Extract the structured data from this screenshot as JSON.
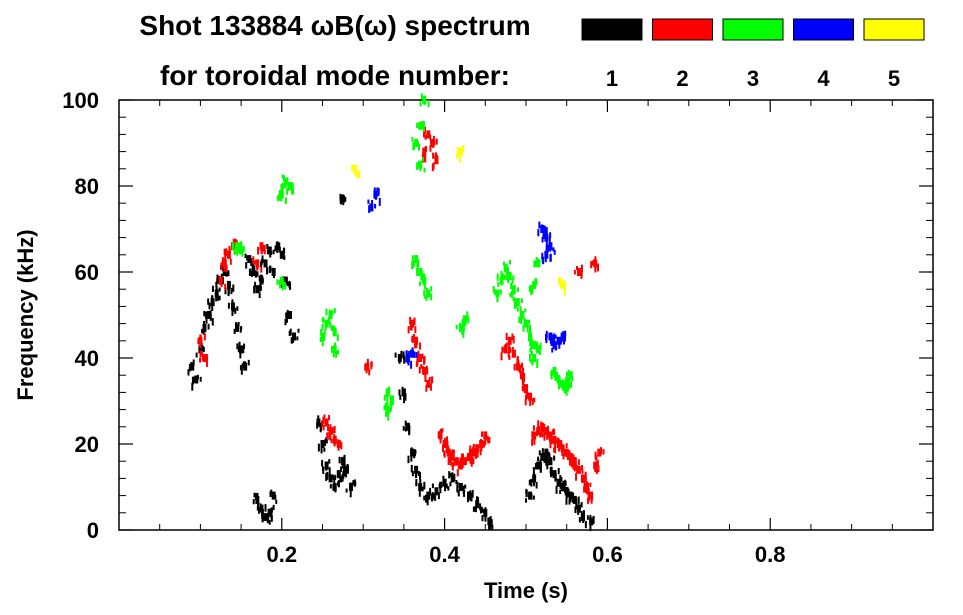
{
  "chart_data": {
    "type": "scatter",
    "title": "Shot 133884 ωB(ω) spectrum",
    "subtitle": "for toroidal mode number:",
    "xlabel": "Time (s)",
    "ylabel": "Frequency (kHz)",
    "xlim": [
      0.0,
      1.0
    ],
    "ylim": [
      0,
      100
    ],
    "x_ticks": [
      0.2,
      0.4,
      0.6,
      0.8
    ],
    "x_tick_labels": [
      "0.2",
      "0.4",
      "0.6",
      "0.8"
    ],
    "y_ticks": [
      0,
      20,
      40,
      60,
      80,
      100
    ],
    "y_tick_labels": [
      "0",
      "20",
      "40",
      "60",
      "80",
      "100"
    ],
    "legend_placement": "top-right",
    "grid": false,
    "series": [
      {
        "name": "1",
        "color": "#000000",
        "points": [
          [
            0.09,
            38
          ],
          [
            0.095,
            35
          ],
          [
            0.1,
            42
          ],
          [
            0.105,
            47
          ],
          [
            0.11,
            50
          ],
          [
            0.115,
            53
          ],
          [
            0.12,
            55
          ],
          [
            0.125,
            58
          ],
          [
            0.13,
            60
          ],
          [
            0.135,
            57
          ],
          [
            0.14,
            52
          ],
          [
            0.145,
            47
          ],
          [
            0.15,
            42
          ],
          [
            0.155,
            38
          ],
          [
            0.16,
            63
          ],
          [
            0.165,
            60
          ],
          [
            0.17,
            56
          ],
          [
            0.175,
            58
          ],
          [
            0.18,
            62
          ],
          [
            0.185,
            65
          ],
          [
            0.19,
            60
          ],
          [
            0.195,
            66
          ],
          [
            0.2,
            64
          ],
          [
            0.205,
            58
          ],
          [
            0.21,
            50
          ],
          [
            0.215,
            45
          ],
          [
            0.175,
            5
          ],
          [
            0.18,
            3
          ],
          [
            0.185,
            4
          ],
          [
            0.19,
            8
          ],
          [
            0.17,
            7
          ],
          [
            0.245,
            25
          ],
          [
            0.25,
            20
          ],
          [
            0.255,
            15
          ],
          [
            0.26,
            12
          ],
          [
            0.265,
            10
          ],
          [
            0.27,
            13
          ],
          [
            0.275,
            16
          ],
          [
            0.28,
            14
          ],
          [
            0.285,
            10
          ],
          [
            0.275,
            77
          ],
          [
            0.345,
            40
          ],
          [
            0.35,
            32
          ],
          [
            0.355,
            24
          ],
          [
            0.36,
            18
          ],
          [
            0.365,
            14
          ],
          [
            0.37,
            10
          ],
          [
            0.38,
            8
          ],
          [
            0.39,
            9
          ],
          [
            0.4,
            11
          ],
          [
            0.41,
            12
          ],
          [
            0.42,
            10
          ],
          [
            0.43,
            8
          ],
          [
            0.44,
            6
          ],
          [
            0.45,
            4
          ],
          [
            0.455,
            2
          ],
          [
            0.505,
            8
          ],
          [
            0.51,
            12
          ],
          [
            0.515,
            15
          ],
          [
            0.52,
            17
          ],
          [
            0.525,
            18
          ],
          [
            0.53,
            16
          ],
          [
            0.535,
            13
          ],
          [
            0.54,
            11
          ],
          [
            0.545,
            10
          ],
          [
            0.55,
            9
          ],
          [
            0.555,
            8
          ],
          [
            0.56,
            7
          ],
          [
            0.565,
            5
          ],
          [
            0.57,
            3
          ],
          [
            0.58,
            2
          ]
        ]
      },
      {
        "name": "2",
        "color": "#ff0000",
        "points": [
          [
            0.125,
            58
          ],
          [
            0.13,
            62
          ],
          [
            0.135,
            64
          ],
          [
            0.14,
            66
          ],
          [
            0.1,
            44
          ],
          [
            0.105,
            40
          ],
          [
            0.17,
            62
          ],
          [
            0.175,
            66
          ],
          [
            0.255,
            25
          ],
          [
            0.26,
            23
          ],
          [
            0.265,
            21
          ],
          [
            0.27,
            20
          ],
          [
            0.305,
            38
          ],
          [
            0.36,
            48
          ],
          [
            0.365,
            44
          ],
          [
            0.37,
            40
          ],
          [
            0.375,
            37
          ],
          [
            0.38,
            34
          ],
          [
            0.375,
            88
          ],
          [
            0.38,
            92
          ],
          [
            0.385,
            90
          ],
          [
            0.39,
            86
          ],
          [
            0.395,
            22
          ],
          [
            0.4,
            20
          ],
          [
            0.405,
            18
          ],
          [
            0.41,
            17
          ],
          [
            0.415,
            16
          ],
          [
            0.42,
            15
          ],
          [
            0.425,
            16
          ],
          [
            0.43,
            17
          ],
          [
            0.435,
            18
          ],
          [
            0.44,
            19
          ],
          [
            0.445,
            20
          ],
          [
            0.45,
            22
          ],
          [
            0.475,
            42
          ],
          [
            0.48,
            44
          ],
          [
            0.485,
            41
          ],
          [
            0.49,
            38
          ],
          [
            0.495,
            36
          ],
          [
            0.5,
            33
          ],
          [
            0.505,
            31
          ],
          [
            0.51,
            22
          ],
          [
            0.515,
            23
          ],
          [
            0.52,
            24
          ],
          [
            0.525,
            23
          ],
          [
            0.53,
            22
          ],
          [
            0.535,
            21
          ],
          [
            0.54,
            20
          ],
          [
            0.545,
            19
          ],
          [
            0.55,
            18
          ],
          [
            0.555,
            17
          ],
          [
            0.56,
            16
          ],
          [
            0.565,
            14
          ],
          [
            0.57,
            12
          ],
          [
            0.575,
            10
          ],
          [
            0.58,
            8
          ],
          [
            0.585,
            15
          ],
          [
            0.59,
            18
          ],
          [
            0.585,
            62
          ],
          [
            0.565,
            60
          ]
        ]
      },
      {
        "name": "3",
        "color": "#00ff00",
        "points": [
          [
            0.145,
            66
          ],
          [
            0.15,
            65
          ],
          [
            0.2,
            78
          ],
          [
            0.205,
            81
          ],
          [
            0.21,
            80
          ],
          [
            0.2,
            58
          ],
          [
            0.25,
            45
          ],
          [
            0.255,
            48
          ],
          [
            0.26,
            50
          ],
          [
            0.265,
            46
          ],
          [
            0.265,
            42
          ],
          [
            0.33,
            32
          ],
          [
            0.335,
            30
          ],
          [
            0.33,
            28
          ],
          [
            0.365,
            63
          ],
          [
            0.37,
            60
          ],
          [
            0.375,
            58
          ],
          [
            0.38,
            55
          ],
          [
            0.375,
            100
          ],
          [
            0.37,
            94
          ],
          [
            0.365,
            90
          ],
          [
            0.37,
            85
          ],
          [
            0.465,
            55
          ],
          [
            0.47,
            58
          ],
          [
            0.475,
            61
          ],
          [
            0.48,
            59
          ],
          [
            0.485,
            56
          ],
          [
            0.49,
            53
          ],
          [
            0.495,
            50
          ],
          [
            0.5,
            48
          ],
          [
            0.505,
            45
          ],
          [
            0.51,
            43
          ],
          [
            0.515,
            42
          ],
          [
            0.535,
            37
          ],
          [
            0.54,
            35
          ],
          [
            0.545,
            34
          ],
          [
            0.55,
            33
          ],
          [
            0.555,
            36
          ],
          [
            0.515,
            62
          ],
          [
            0.51,
            57
          ],
          [
            0.51,
            40
          ],
          [
            0.42,
            47
          ],
          [
            0.425,
            49
          ]
        ]
      },
      {
        "name": "4",
        "color": "#0000ff",
        "points": [
          [
            0.31,
            75
          ],
          [
            0.315,
            78
          ],
          [
            0.52,
            70
          ],
          [
            0.525,
            68
          ],
          [
            0.53,
            66
          ],
          [
            0.525,
            64
          ],
          [
            0.54,
            44
          ],
          [
            0.545,
            45
          ],
          [
            0.535,
            43
          ],
          [
            0.53,
            45
          ],
          [
            0.355,
            40
          ],
          [
            0.36,
            41
          ]
        ]
      },
      {
        "name": "5",
        "color": "#ffff00",
        "points": [
          [
            0.42,
            88
          ],
          [
            0.545,
            57
          ],
          [
            0.29,
            84
          ]
        ]
      }
    ]
  }
}
